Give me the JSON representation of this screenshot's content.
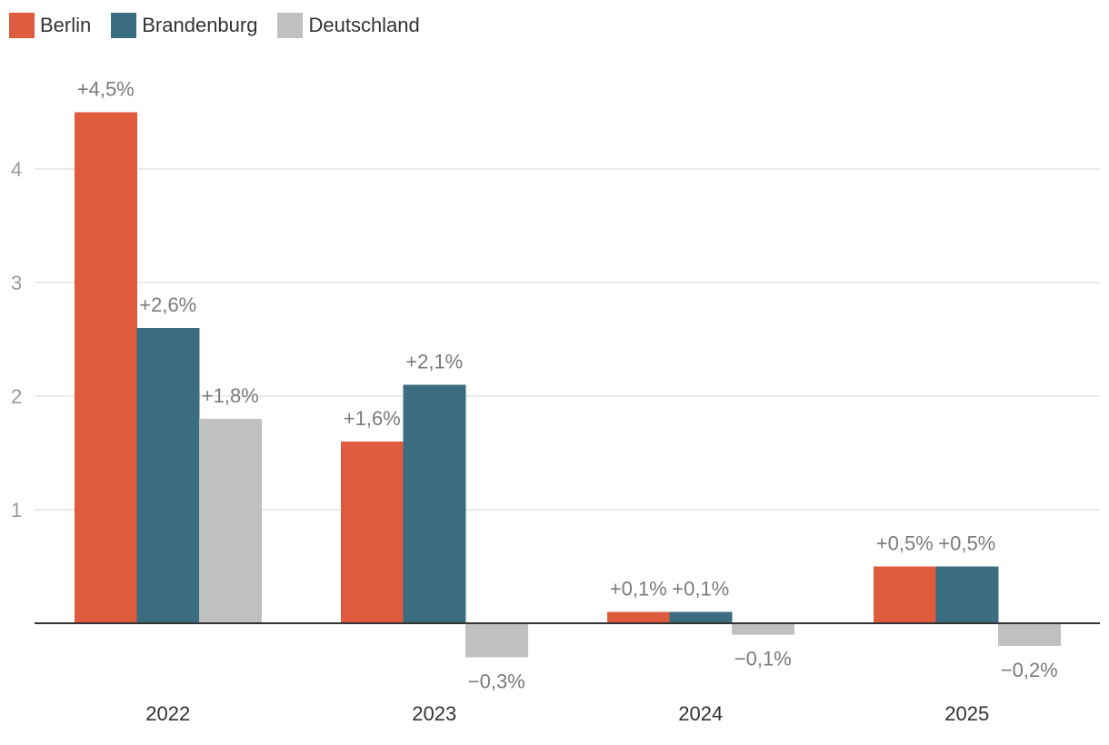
{
  "chart_data": {
    "type": "bar",
    "categories": [
      "2022",
      "2023",
      "2024",
      "2025"
    ],
    "series": [
      {
        "name": "Berlin",
        "color": "#df5b3d",
        "values": [
          4.5,
          1.6,
          0.1,
          0.5
        ],
        "labels": [
          "+4,5%",
          "+1,6%",
          "+0,1%",
          "+0,5%"
        ]
      },
      {
        "name": "Brandenburg",
        "color": "#3a6d80",
        "values": [
          2.6,
          2.1,
          0.1,
          0.5
        ],
        "labels": [
          "+2,6%",
          "+2,1%",
          "+0,1%",
          "+0,5%"
        ]
      },
      {
        "name": "Deutschland",
        "color": "#c0c0c0",
        "values": [
          1.8,
          -0.3,
          -0.1,
          -0.2
        ],
        "labels": [
          "+1,8%",
          "−0,3%",
          "−0,1%",
          "−0,2%"
        ]
      }
    ],
    "yticks": [
      {
        "value": 1,
        "label": "1"
      },
      {
        "value": 2,
        "label": "2"
      },
      {
        "value": 3,
        "label": "3"
      },
      {
        "value": 4,
        "label": "4"
      }
    ],
    "ylim": [
      -0.6,
      4.8
    ],
    "grid": true,
    "legend_position": "top-left",
    "title": "",
    "xlabel": "",
    "ylabel": ""
  }
}
